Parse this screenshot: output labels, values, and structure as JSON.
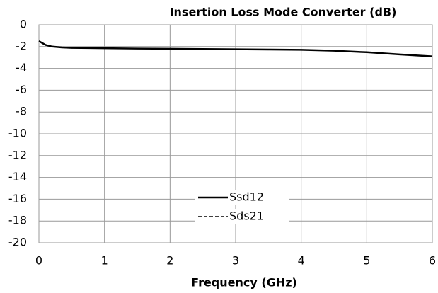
{
  "chart_data": {
    "type": "line",
    "title": "Insertion Loss Mode Converter (dB)",
    "x_label": "Frequency (GHz)",
    "x": [
      0,
      0.1,
      0.2,
      0.35,
      0.5,
      1,
      1.5,
      2,
      2.5,
      3,
      3.5,
      4,
      4.5,
      5,
      5.5,
      6
    ],
    "series": [
      {
        "name": "Ssd12",
        "color": "#000000",
        "dash": false,
        "values": [
          -1.5,
          -1.85,
          -2.0,
          -2.08,
          -2.12,
          -2.15,
          -2.18,
          -2.2,
          -2.22,
          -2.25,
          -2.27,
          -2.3,
          -2.38,
          -2.52,
          -2.72,
          -2.9
        ]
      },
      {
        "name": "Sds21",
        "color": "#000000",
        "dash": true,
        "values": [
          -1.5,
          -1.85,
          -2.0,
          -2.08,
          -2.12,
          -2.15,
          -2.18,
          -2.2,
          -2.22,
          -2.25,
          -2.27,
          -2.3,
          -2.38,
          -2.52,
          -2.72,
          -2.9
        ]
      }
    ],
    "xlim": [
      0,
      6
    ],
    "xticks": [
      0,
      1,
      2,
      3,
      4,
      5,
      6
    ],
    "ylim": [
      -20,
      0
    ],
    "yticks": [
      0,
      -2,
      -4,
      -6,
      -8,
      -10,
      -12,
      -14,
      -16,
      -18,
      -20
    ],
    "grid": true
  }
}
